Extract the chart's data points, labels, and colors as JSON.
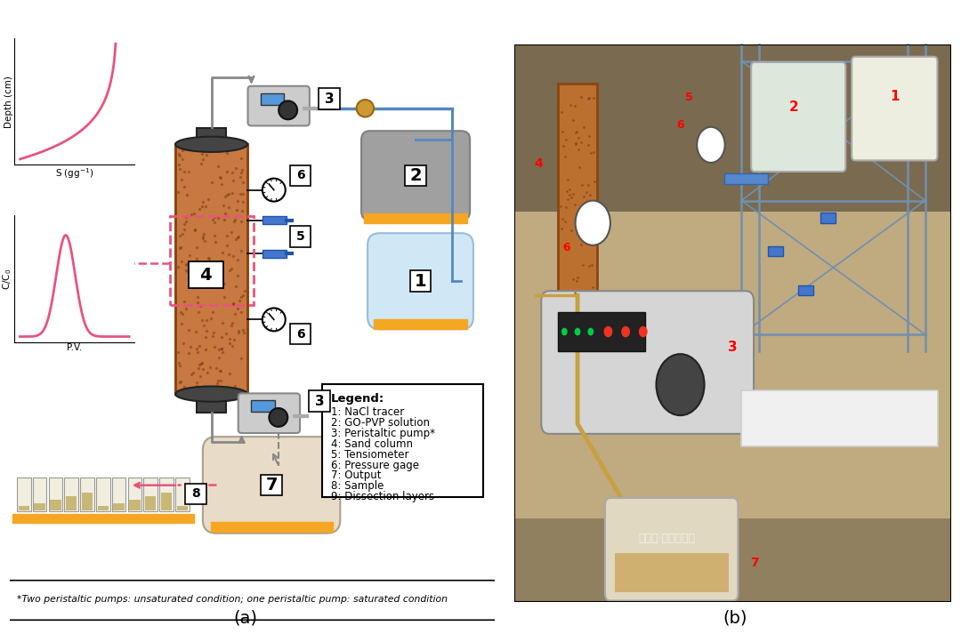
{
  "title_a": "(a)",
  "title_b": "(b)",
  "legend_title": "Legend:",
  "legend_items": [
    "1: NaCl tracer",
    "2: GO-PVP solution",
    "3: Peristaltic pump*",
    "4: Sand column",
    "5: Tensiometer",
    "6: Pressure gage",
    "7: Output",
    "8: Sample",
    "9: Dissection layers"
  ],
  "footnote": "*Two peristaltic pumps: unsaturated condition; one peristaltic pump: saturated condition",
  "bg_color": "#ffffff",
  "orange_platform": "#f5a623",
  "sand_color": "#c87941",
  "sand_border": "#8B4513",
  "pink_color": "#e75480",
  "light_blue": "#d0e8f5",
  "gray_box": "#9e9e9e",
  "beige_box": "#e8dcc8",
  "label_color": "#000000",
  "number_color": "#000000",
  "photo_label_color": "#ff0000",
  "watermark": "公众号·石墨烯研究"
}
